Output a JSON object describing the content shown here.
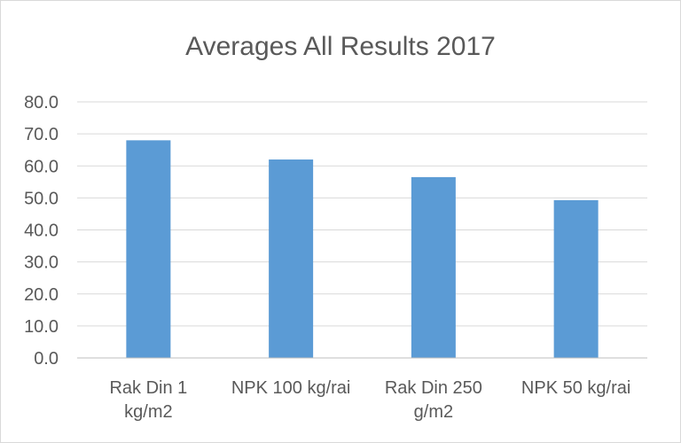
{
  "chart_data": {
    "type": "bar",
    "title": "Averages All Results 2017",
    "categories": [
      [
        "Rak Din 1",
        "kg/m2"
      ],
      [
        "NPK 100 kg/rai"
      ],
      [
        "Rak Din 250",
        "g/m2"
      ],
      [
        "NPK 50 kg/rai"
      ]
    ],
    "values": [
      68.0,
      62.0,
      56.5,
      49.3
    ],
    "ylim": [
      0,
      80
    ],
    "yticks": [
      "0.0",
      "10.0",
      "20.0",
      "30.0",
      "40.0",
      "50.0",
      "60.0",
      "70.0",
      "80.0"
    ],
    "grid": true,
    "bar_color": "#5b9bd5"
  }
}
